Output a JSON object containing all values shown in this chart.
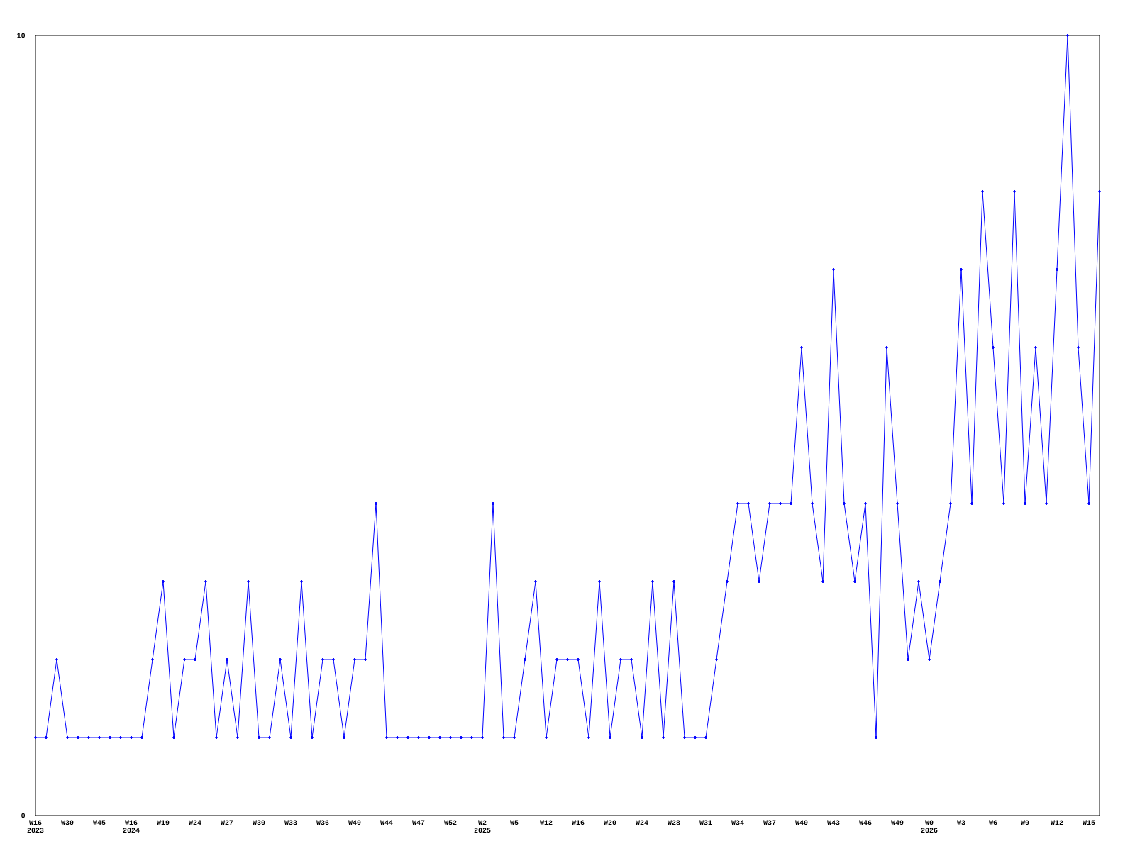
{
  "chart_data": {
    "type": "line",
    "categories": [
      "W16 2023",
      null,
      null,
      "W30",
      null,
      null,
      "W45",
      null,
      null,
      "W16 2024",
      null,
      null,
      "W19",
      null,
      null,
      "W24",
      null,
      null,
      "W27",
      null,
      null,
      "W30",
      null,
      null,
      "W33",
      null,
      null,
      "W36",
      null,
      null,
      "W40",
      null,
      null,
      "W44",
      null,
      null,
      "W47",
      null,
      null,
      "W52",
      null,
      null,
      "W2 2025",
      null,
      null,
      "W5",
      null,
      null,
      "W12",
      null,
      null,
      "W16",
      null,
      null,
      "W20",
      null,
      null,
      "W24",
      null,
      null,
      "W28",
      null,
      null,
      "W31",
      null,
      null,
      "W34",
      null,
      null,
      "W37",
      null,
      null,
      "W40",
      null,
      null,
      "W43",
      null,
      null,
      "W46",
      null,
      null,
      "W49",
      null,
      null,
      "W0 2026",
      null,
      null,
      "W3",
      null,
      null,
      "W6",
      null,
      null,
      "W9",
      null,
      null,
      "W12",
      null,
      null,
      "W15",
      null
    ],
    "values": [
      1,
      1,
      2,
      1,
      1,
      1,
      1,
      1,
      1,
      1,
      1,
      2,
      3,
      1,
      2,
      2,
      3,
      1,
      2,
      1,
      3,
      1,
      1,
      2,
      1,
      3,
      1,
      2,
      2,
      1,
      2,
      2,
      4,
      1,
      1,
      1,
      1,
      1,
      1,
      1,
      1,
      1,
      1,
      4,
      1,
      1,
      2,
      3,
      1,
      2,
      2,
      2,
      1,
      3,
      1,
      2,
      2,
      1,
      3,
      1,
      3,
      1,
      1,
      1,
      2,
      3,
      4,
      4,
      3,
      4,
      4,
      4,
      6,
      4,
      3,
      7,
      4,
      3,
      4,
      1,
      6,
      4,
      2,
      3,
      2,
      3,
      4,
      7,
      4,
      8,
      6,
      4,
      8,
      4,
      6,
      4,
      7,
      10,
      6,
      4,
      8
    ],
    "color": "#0000ff",
    "marker": "diamond",
    "line_style": "solid",
    "ylim": [
      0,
      10
    ],
    "yticks": [
      0,
      10
    ]
  }
}
